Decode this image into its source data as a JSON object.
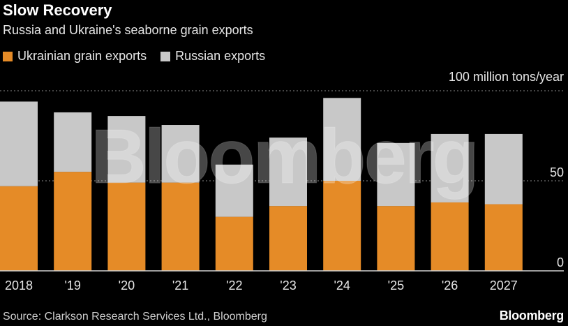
{
  "header": {
    "title": "Slow Recovery",
    "subtitle": "Russia and Ukraine's seaborne grain exports"
  },
  "legend": {
    "items": [
      {
        "label": "Ukrainian grain exports",
        "color": "#e58b27"
      },
      {
        "label": "Russian exports",
        "color": "#c8c8c8"
      }
    ]
  },
  "axis": {
    "unit_label": "100 million tons/year"
  },
  "footer": {
    "source": "Source: Clarkson Research Services Ltd., Bloomberg",
    "brand": "Bloomberg"
  },
  "watermark": "Bloomberg",
  "colors": {
    "ukraine": "#e58b27",
    "russia": "#c8c8c8",
    "gridline": "#8a8a8a",
    "background": "#000000"
  },
  "chart_data": {
    "type": "bar",
    "stacked": true,
    "categories": [
      "2018",
      "'19",
      "'20",
      "'21",
      "'22",
      "'23",
      "'24",
      "'25",
      "'26",
      "2027"
    ],
    "series": [
      {
        "name": "Ukrainian grain exports",
        "values": [
          47,
          55,
          49,
          49,
          30,
          36,
          50,
          36,
          38,
          37
        ]
      },
      {
        "name": "Russian exports",
        "values": [
          47,
          33,
          37,
          32,
          29,
          38,
          46,
          35,
          38,
          39
        ]
      }
    ],
    "ylim": [
      0,
      100
    ],
    "yticks": [
      0,
      50,
      100
    ],
    "ytick_labels": [
      "0",
      "50",
      "100"
    ],
    "grid": true
  }
}
